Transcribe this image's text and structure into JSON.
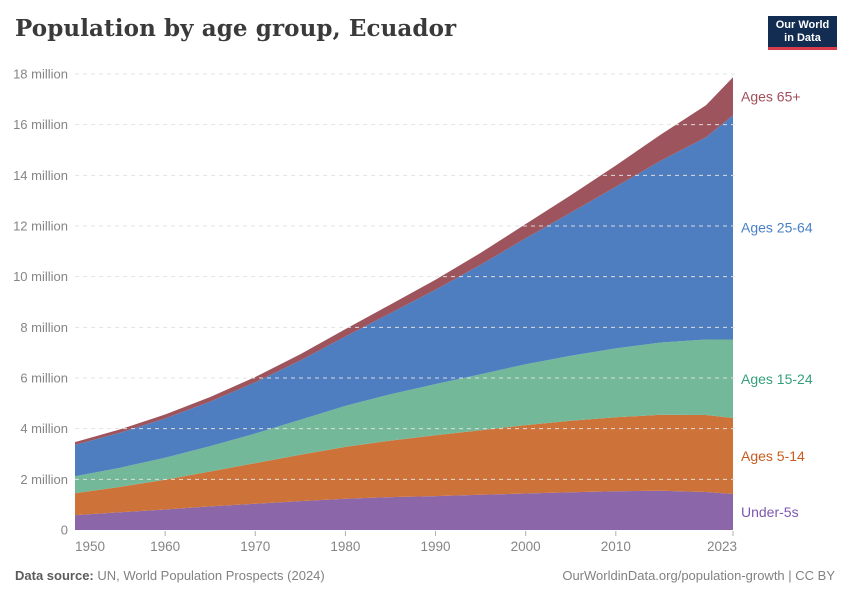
{
  "title": "Population by age group, Ecuador",
  "logo": {
    "line1": "Our World",
    "line2": "in Data",
    "bg": "#132c52",
    "underline": "#d73c4c"
  },
  "footer": {
    "source_label": "Data source:",
    "source_text": " UN, World Population Prospects (2024)",
    "right_text": "OurWorldinData.org/population-growth | CC BY"
  },
  "chart_data": {
    "type": "area",
    "stacked": true,
    "title": "Population by age group, Ecuador",
    "unit": "million",
    "grid": "dashed-horizontal",
    "legend_position": "right-of-plot",
    "xlim": [
      1950,
      2023
    ],
    "ylim": [
      0,
      18
    ],
    "x": [
      1950,
      1955,
      1960,
      1965,
      1970,
      1975,
      1980,
      1985,
      1990,
      1995,
      2000,
      2005,
      2010,
      2015,
      2020,
      2023
    ],
    "x_ticks": [
      1950,
      1960,
      1970,
      1980,
      1990,
      2000,
      2010,
      2023
    ],
    "x_tick_labels": [
      "1950",
      "1960",
      "1970",
      "1980",
      "1990",
      "2000",
      "2010",
      "2023"
    ],
    "y_ticks": [
      0,
      2,
      4,
      6,
      8,
      10,
      12,
      14,
      16,
      18
    ],
    "y_tick_labels": [
      "0",
      "2 million",
      "4 million",
      "6 million",
      "8 million",
      "10 million",
      "12 million",
      "14 million",
      "16 million",
      "18 million"
    ],
    "series": [
      {
        "name": "Under-5s",
        "color": "#8b67a9",
        "label_color": "#7d57ae",
        "values": [
          0.59,
          0.7,
          0.81,
          0.93,
          1.04,
          1.14,
          1.23,
          1.3,
          1.34,
          1.39,
          1.44,
          1.49,
          1.53,
          1.55,
          1.5,
          1.42
        ]
      },
      {
        "name": "Ages 5-14",
        "color": "#cd7339",
        "label_color": "#c75c1e",
        "values": [
          0.86,
          1.0,
          1.17,
          1.38,
          1.6,
          1.83,
          2.05,
          2.23,
          2.4,
          2.55,
          2.7,
          2.82,
          2.92,
          3.0,
          3.04,
          3.0
        ]
      },
      {
        "name": "Ages 15-24",
        "color": "#73b999",
        "label_color": "#35a07e",
        "values": [
          0.67,
          0.76,
          0.87,
          1.0,
          1.17,
          1.38,
          1.62,
          1.83,
          2.02,
          2.21,
          2.4,
          2.57,
          2.72,
          2.85,
          2.98,
          3.1
        ]
      },
      {
        "name": "Ages 25-64",
        "color": "#4e7ebf",
        "label_color": "#4a80c6",
        "values": [
          1.24,
          1.38,
          1.55,
          1.76,
          2.02,
          2.34,
          2.74,
          3.2,
          3.72,
          4.32,
          4.98,
          5.65,
          6.38,
          7.18,
          7.98,
          8.85
        ]
      },
      {
        "name": "Ages 65+",
        "color": "#9e545c",
        "label_color": "#a14e58",
        "values": [
          0.11,
          0.13,
          0.16,
          0.18,
          0.21,
          0.25,
          0.29,
          0.34,
          0.4,
          0.47,
          0.56,
          0.68,
          0.84,
          1.03,
          1.27,
          1.5
        ]
      }
    ]
  }
}
